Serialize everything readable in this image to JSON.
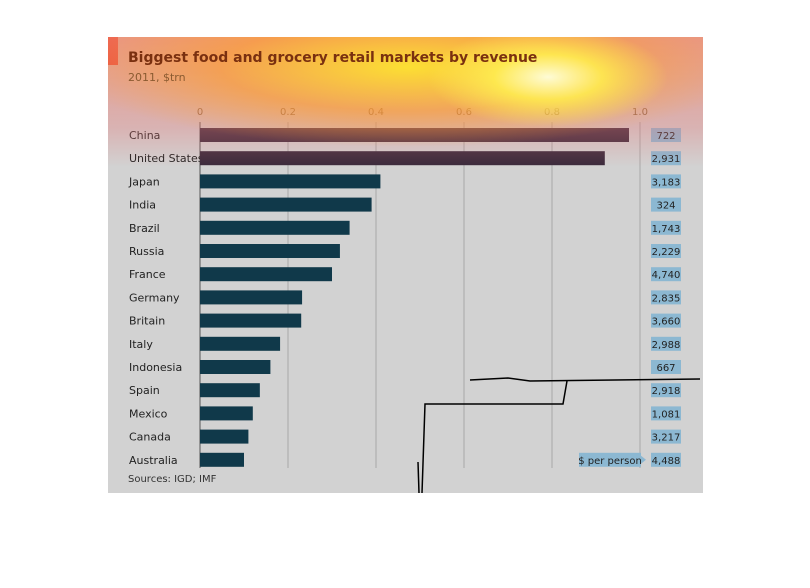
{
  "chart_data": {
    "type": "bar",
    "orientation": "horizontal",
    "title": "Biggest food and grocery retail markets by revenue",
    "subtitle": "2011, $trn",
    "source": "Sources: IGD; IMF",
    "xlim": [
      0,
      1.0
    ],
    "ticks": [
      "0",
      "0.2",
      "0.4",
      "0.6",
      "0.8",
      "1.0"
    ],
    "tick_values": [
      0,
      0.2,
      0.4,
      0.6,
      0.8,
      1.0
    ],
    "grid": true,
    "categories": [
      "China",
      "United States",
      "Japan",
      "India",
      "Brazil",
      "Russia",
      "France",
      "Germany",
      "Britain",
      "Italy",
      "Indonesia",
      "Spain",
      "Mexico",
      "Canada",
      "Australia"
    ],
    "values": [
      0.975,
      0.92,
      0.41,
      0.39,
      0.34,
      0.318,
      0.3,
      0.232,
      0.23,
      0.182,
      0.16,
      0.136,
      0.12,
      0.11,
      0.1
    ],
    "secondary_label": "$ per person",
    "secondary_values": [
      "722",
      "2,931",
      "3,183",
      "324",
      "1,743",
      "2,229",
      "4,740",
      "2,835",
      "3,660",
      "2,988",
      "667",
      "2,918",
      "1,081",
      "3,217",
      "4,488"
    ],
    "colors": {
      "bar_top": "#3a2a3c",
      "bar": "#10394a",
      "label_box": "#8cb8d2",
      "accent": "#e3120b"
    }
  }
}
